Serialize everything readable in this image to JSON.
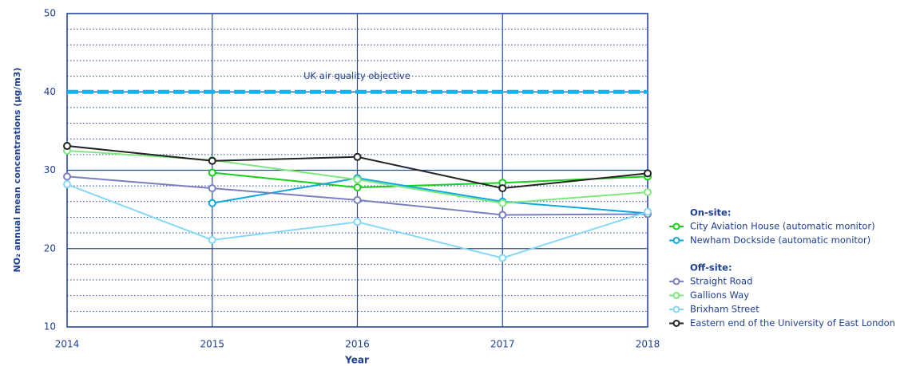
{
  "chart_data": {
    "type": "line",
    "x_label": "Year",
    "y_label": "NO₂ annual mean concentrations (µg/m3)",
    "categories": [
      "2014",
      "2015",
      "2016",
      "2017",
      "2018"
    ],
    "ylim": [
      10,
      50
    ],
    "yticks": [
      10,
      20,
      30,
      40,
      50
    ],
    "minor_yticks": [
      12,
      14,
      16,
      18,
      22,
      24,
      26,
      28,
      32,
      34,
      36,
      38,
      42,
      44,
      46,
      48
    ],
    "grid": true,
    "objective": {
      "value": 40,
      "label": "UK air quality objective",
      "color": "#11b4ee"
    },
    "legend_groups": [
      {
        "title": "On-site:"
      },
      {
        "title": "Off-site:"
      }
    ],
    "series": [
      {
        "name": "City Aviation House (automatic monitor)",
        "color": "#17d017",
        "legend_group": 0,
        "values": [
          null,
          29.7,
          27.8,
          28.4,
          29.2
        ]
      },
      {
        "name": "Newham Dockside (automatic monitor)",
        "color": "#0ea8de",
        "legend_group": 0,
        "values": [
          null,
          25.8,
          29.0,
          26.0,
          24.5
        ]
      },
      {
        "name": "Straight Road",
        "color": "#7a7fc0",
        "legend_group": 1,
        "values": [
          29.2,
          27.7,
          26.2,
          24.3,
          24.4
        ]
      },
      {
        "name": "Gallions Way",
        "color": "#7ee87e",
        "legend_group": 1,
        "values": [
          32.5,
          31.3,
          28.8,
          25.8,
          27.2
        ]
      },
      {
        "name": "Brixham Street",
        "color": "#86d8f7",
        "legend_group": 1,
        "values": [
          28.2,
          21.1,
          23.4,
          18.8,
          24.7
        ]
      },
      {
        "name": "Eastern end of the University of East London",
        "color": "#222222",
        "legend_group": 1,
        "values": [
          33.1,
          31.2,
          31.7,
          27.7,
          29.6
        ]
      }
    ]
  }
}
